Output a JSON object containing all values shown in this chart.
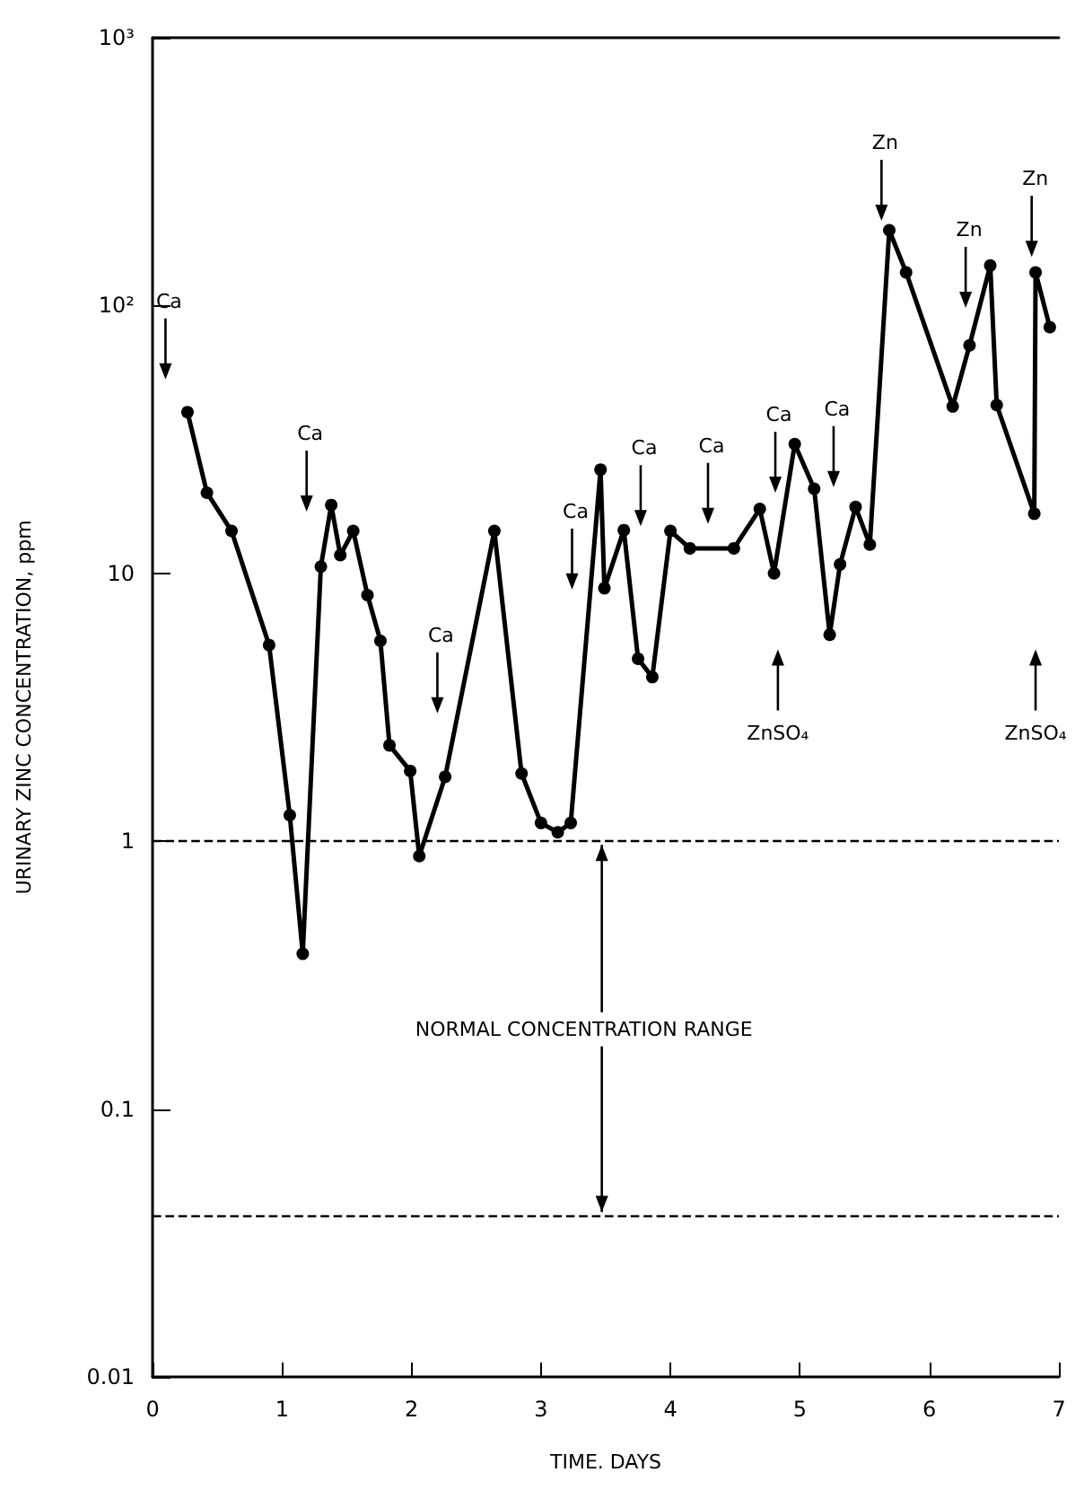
{
  "chart_data": {
    "type": "line",
    "xlabel": "TIME. DAYS",
    "ylabel": "URINARY ZINC CONCENTRATION, ppm",
    "log": "y",
    "grid": false,
    "marker": "circle",
    "line_style": "solid",
    "xlim": [
      0,
      7
    ],
    "xticks": [
      0,
      1,
      2,
      3,
      4,
      5,
      6,
      7
    ],
    "ylim": [
      0.01,
      1000
    ],
    "yticks": [
      0.01,
      0.1,
      1,
      10,
      {
        "value": 100,
        "label": "10²"
      },
      {
        "value": 1000,
        "label": "10³"
      }
    ],
    "x": [
      0.27,
      0.42,
      0.61,
      0.9,
      1.06,
      1.16,
      1.3,
      1.38,
      1.45,
      1.55,
      1.66,
      1.76,
      1.83,
      1.99,
      2.06,
      2.26,
      2.64,
      2.85,
      3.0,
      3.13,
      3.23,
      3.46,
      3.49,
      3.64,
      3.75,
      3.86,
      4.0,
      4.15,
      4.49,
      4.69,
      4.8,
      4.96,
      5.11,
      5.23,
      5.31,
      5.43,
      5.54,
      5.69,
      5.82,
      6.18,
      6.31,
      6.47,
      6.52,
      6.81,
      6.82,
      6.93
    ],
    "series": [
      {
        "color": "#000000",
        "values": [
          40,
          20,
          14.4,
          5.4,
          1.25,
          0.38,
          10.6,
          18,
          11.7,
          14.4,
          8.3,
          5.6,
          2.28,
          1.83,
          0.88,
          1.74,
          14.4,
          1.79,
          1.17,
          1.08,
          1.17,
          24.4,
          8.8,
          14.5,
          4.8,
          4.1,
          14.4,
          12.4,
          12.4,
          17.4,
          10,
          30.4,
          20.7,
          5.9,
          10.8,
          17.7,
          12.8,
          191,
          133,
          42,
          71,
          141,
          42.5,
          16.7,
          133,
          83
        ]
      }
    ],
    "ref_lines": [
      {
        "axis": "y",
        "value": 1,
        "line_style": "dashed",
        "color": "#000000"
      },
      {
        "axis": "y",
        "value": 0.04,
        "line_style": "dashed",
        "color": "#000000"
      }
    ],
    "annotations": [
      "Ca",
      "Ca",
      "Ca",
      "Ca",
      "Ca",
      "Ca",
      "Ca",
      "Ca",
      "Zn",
      "Zn",
      "Zn",
      "ZnSO₄",
      "ZnSO₄",
      {
        "text": "NORMAL CONCENTRATION RANGE",
        "x": 3.47,
        "y": 1
      }
    ]
  }
}
